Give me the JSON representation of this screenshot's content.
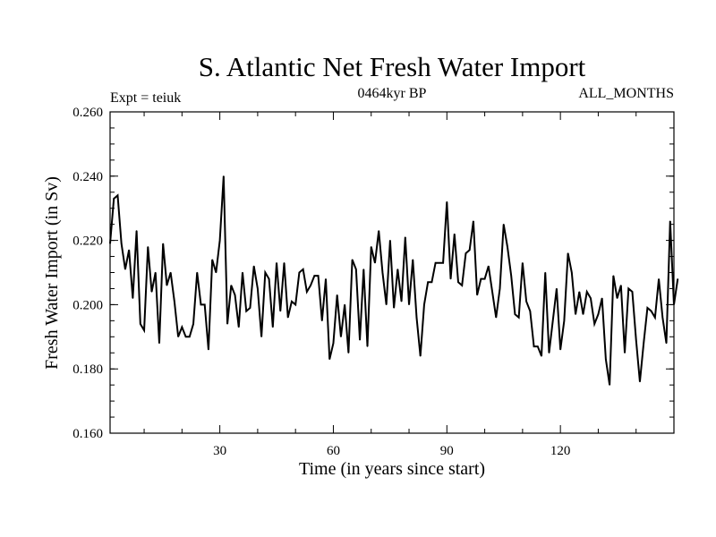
{
  "chart_data": {
    "type": "line",
    "title": "S. Atlantic Net Fresh Water Import",
    "subtitle_left": "Expt = teiuk",
    "subtitle_center": "0464kyr BP",
    "subtitle_right": "ALL_MONTHS",
    "xlabel": "Time (in years since start)",
    "ylabel": "Fresh Water Import (in Sv)",
    "xlim": [
      1,
      150
    ],
    "ylim": [
      0.16,
      0.26
    ],
    "x_ticks": [
      30,
      60,
      90,
      120
    ],
    "x_tick_labels": [
      "30",
      "60",
      "90",
      "120"
    ],
    "y_ticks": [
      0.16,
      0.18,
      0.2,
      0.22,
      0.24,
      0.26
    ],
    "y_tick_labels": [
      "0.160",
      "0.180",
      "0.200",
      "0.220",
      "0.240",
      "0.260"
    ],
    "grid": false,
    "series": [
      {
        "name": "Fresh Water Import",
        "values": [
          0.219,
          0.233,
          0.234,
          0.219,
          0.211,
          0.217,
          0.202,
          0.223,
          0.194,
          0.192,
          0.218,
          0.204,
          0.21,
          0.188,
          0.219,
          0.206,
          0.21,
          0.201,
          0.19,
          0.193,
          0.19,
          0.19,
          0.194,
          0.21,
          0.2,
          0.2,
          0.186,
          0.214,
          0.21,
          0.22,
          0.24,
          0.194,
          0.206,
          0.203,
          0.193,
          0.21,
          0.198,
          0.199,
          0.212,
          0.205,
          0.19,
          0.21,
          0.208,
          0.193,
          0.213,
          0.198,
          0.213,
          0.196,
          0.201,
          0.2,
          0.21,
          0.211,
          0.204,
          0.206,
          0.209,
          0.209,
          0.195,
          0.208,
          0.183,
          0.188,
          0.203,
          0.19,
          0.2,
          0.185,
          0.214,
          0.211,
          0.189,
          0.211,
          0.187,
          0.218,
          0.213,
          0.223,
          0.21,
          0.2,
          0.22,
          0.199,
          0.211,
          0.201,
          0.221,
          0.2,
          0.214,
          0.196,
          0.184,
          0.2,
          0.207,
          0.207,
          0.213,
          0.213,
          0.213,
          0.232,
          0.208,
          0.222,
          0.207,
          0.206,
          0.216,
          0.217,
          0.226,
          0.203,
          0.208,
          0.208,
          0.212,
          0.204,
          0.196,
          0.205,
          0.225,
          0.218,
          0.209,
          0.197,
          0.196,
          0.213,
          0.201,
          0.198,
          0.187,
          0.187,
          0.184,
          0.21,
          0.185,
          0.195,
          0.205,
          0.186,
          0.195,
          0.216,
          0.21,
          0.197,
          0.204,
          0.197,
          0.204,
          0.202,
          0.194,
          0.197,
          0.202,
          0.183,
          0.175,
          0.209,
          0.202,
          0.206,
          0.185,
          0.205,
          0.204,
          0.189,
          0.176,
          0.188,
          0.199,
          0.198,
          0.196,
          0.208,
          0.196,
          0.188,
          0.226,
          0.2,
          0.208
        ]
      }
    ]
  }
}
